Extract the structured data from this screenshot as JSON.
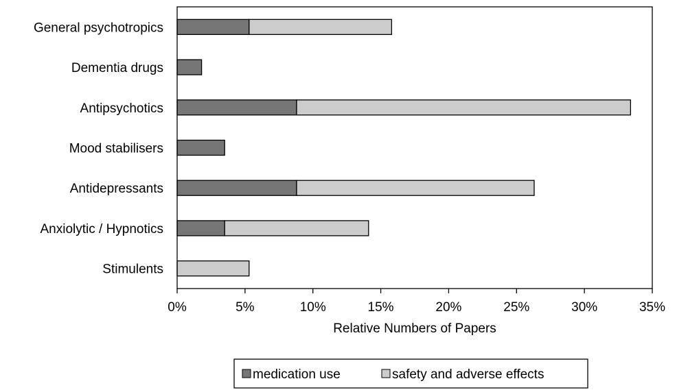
{
  "chart_data": {
    "type": "bar",
    "orientation": "horizontal",
    "stacked": true,
    "categories": [
      "General psychotropics",
      "Dementia drugs",
      "Antipsychotics",
      "Mood stabilisers",
      "Antidepressants",
      "Anxiolytic / Hypnotics",
      "Stimulents"
    ],
    "series": [
      {
        "name": "medication use",
        "color": "#767676",
        "values": [
          5.3,
          1.8,
          8.8,
          3.5,
          8.8,
          3.5,
          0
        ]
      },
      {
        "name": "safety and adverse effects",
        "color": "#cccccc",
        "values": [
          10.5,
          0,
          24.6,
          0,
          17.5,
          10.6,
          5.3
        ]
      }
    ],
    "xlabel": "Relative Numbers of Papers",
    "ylabel": "",
    "xlim": [
      0,
      35
    ],
    "xticks": [
      "0%",
      "5%",
      "10%",
      "15%",
      "20%",
      "25%",
      "30%",
      "35%"
    ],
    "grid": false,
    "legend_position": "bottom"
  }
}
